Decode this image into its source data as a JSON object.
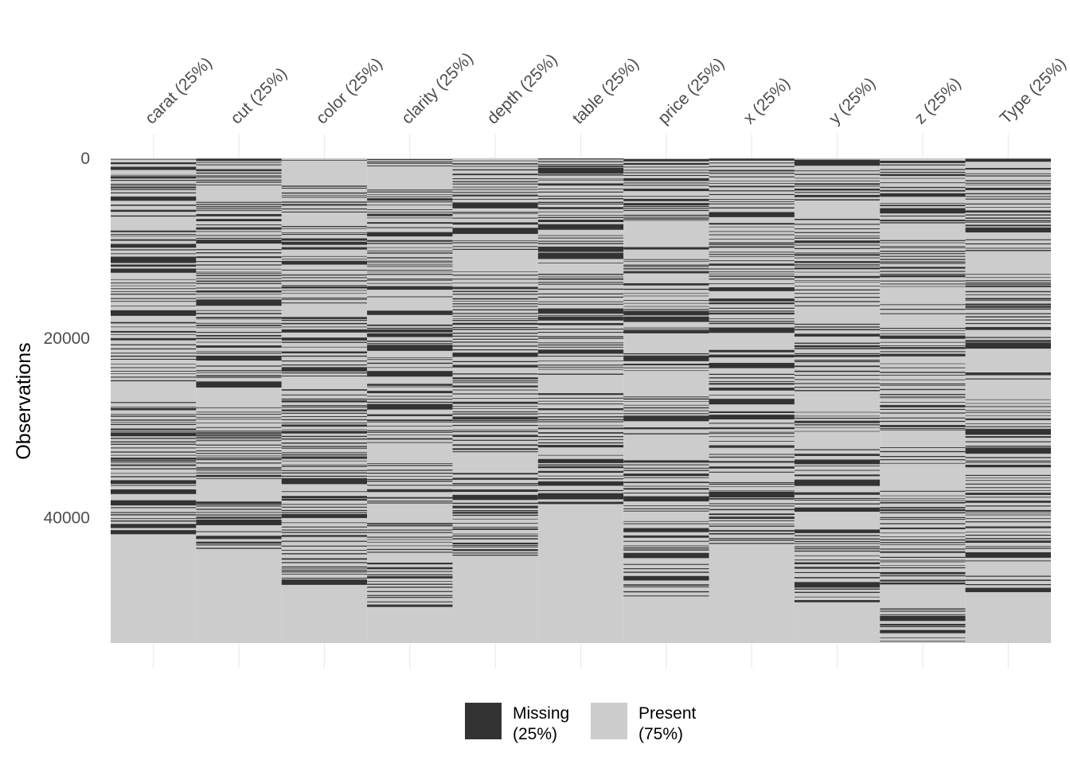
{
  "chart_data": {
    "type": "heatmap",
    "ylabel": "Observations",
    "ylim": [
      0,
      53940
    ],
    "y_reversed": true,
    "y_ticks": [
      0,
      20000,
      40000
    ],
    "y_tick_labels": [
      "0",
      "20000",
      "40000"
    ],
    "grid": true,
    "legend_position": "bottom",
    "categories": [
      "carat (25%)",
      "cut (25%)",
      "color (25%)",
      "clarity (25%)",
      "depth (25%)",
      "table (25%)",
      "price (25%)",
      "x (25%)",
      "y (25%)",
      "z (25%)",
      "Type (25%)"
    ],
    "legend": [
      {
        "key": "missing",
        "label_line1": "Missing",
        "label_line2": "(25%)",
        "color": "#333333"
      },
      {
        "key": "present",
        "label_line1": "Present",
        "label_line2": "(75%)",
        "color": "#cccccc"
      }
    ],
    "missing_fraction": 0.25,
    "n_observations": 53940,
    "colors": {
      "missing": "#333333",
      "present": "#cccccc",
      "grid": "#ebebeb",
      "text": "#4d4d4d",
      "title": "#000000"
    }
  }
}
